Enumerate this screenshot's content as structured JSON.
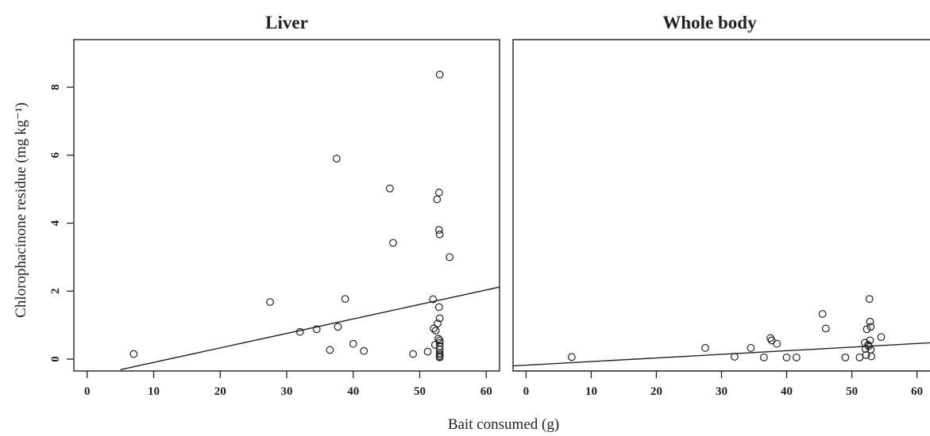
{
  "chart_data": [
    {
      "type": "scatter",
      "title": "Liver",
      "xlim": [
        -2,
        62
      ],
      "ylim": [
        -0.35,
        9.4
      ],
      "xticks": [
        0,
        10,
        20,
        30,
        40,
        50,
        60
      ],
      "yticks": [
        0,
        2,
        4,
        6,
        8
      ],
      "grid": false,
      "points": [
        [
          7,
          0.15
        ],
        [
          27.5,
          1.68
        ],
        [
          32,
          0.8
        ],
        [
          34.5,
          0.88
        ],
        [
          36.5,
          0.27
        ],
        [
          37.5,
          5.9
        ],
        [
          37.7,
          0.95
        ],
        [
          38.8,
          1.77
        ],
        [
          40,
          0.45
        ],
        [
          41.6,
          0.24
        ],
        [
          45.5,
          5.02
        ],
        [
          46,
          3.42
        ],
        [
          49,
          0.15
        ],
        [
          51.2,
          0.22
        ],
        [
          52,
          1.76
        ],
        [
          52.1,
          0.9
        ],
        [
          52.4,
          0.84
        ],
        [
          52.3,
          0.42
        ],
        [
          52.6,
          4.7
        ],
        [
          52.7,
          1.05
        ],
        [
          52.8,
          0.6
        ],
        [
          52.9,
          4.9
        ],
        [
          52.9,
          1.53
        ],
        [
          53,
          8.37
        ],
        [
          52.9,
          3.8
        ],
        [
          53,
          3.67
        ],
        [
          53,
          1.2
        ],
        [
          53,
          0.55
        ],
        [
          53,
          0.48
        ],
        [
          53,
          0.38
        ],
        [
          53,
          0.28
        ],
        [
          53,
          0.18
        ],
        [
          53,
          0.13
        ],
        [
          53,
          0.08
        ],
        [
          53,
          0.05
        ],
        [
          54.5,
          3.0
        ]
      ],
      "fit_line": {
        "x": [
          5,
          62
        ],
        "y": [
          -0.31,
          2.12
        ]
      }
    },
    {
      "type": "scatter",
      "title": "Whole body",
      "xlim": [
        -2,
        62
      ],
      "ylim": [
        -0.35,
        9.4
      ],
      "xticks": [
        0,
        10,
        20,
        30,
        40,
        50,
        60
      ],
      "grid": false,
      "points": [
        [
          7,
          0.06
        ],
        [
          27.5,
          0.33
        ],
        [
          32,
          0.07
        ],
        [
          34.5,
          0.33
        ],
        [
          36.5,
          0.05
        ],
        [
          37.5,
          0.62
        ],
        [
          37.7,
          0.55
        ],
        [
          38.5,
          0.45
        ],
        [
          40,
          0.05
        ],
        [
          41.5,
          0.05
        ],
        [
          45.5,
          1.33
        ],
        [
          46,
          0.9
        ],
        [
          49,
          0.05
        ],
        [
          51.2,
          0.05
        ],
        [
          52,
          0.48
        ],
        [
          52.1,
          0.3
        ],
        [
          52.2,
          0.12
        ],
        [
          52.3,
          0.88
        ],
        [
          52.5,
          0.42
        ],
        [
          52.6,
          0.38
        ],
        [
          52.7,
          1.77
        ],
        [
          52.8,
          1.1
        ],
        [
          52.8,
          0.55
        ],
        [
          52.9,
          0.95
        ],
        [
          52.9,
          0.28
        ],
        [
          53,
          0.08
        ],
        [
          54.5,
          0.65
        ]
      ],
      "fit_line": {
        "x": [
          -2,
          62
        ],
        "y": [
          -0.2,
          0.48
        ]
      }
    }
  ],
  "axes": {
    "xlabel": "Bait consumed (g)",
    "ylabel": "Chlorophacinone residue (mg kg⁻¹)"
  }
}
